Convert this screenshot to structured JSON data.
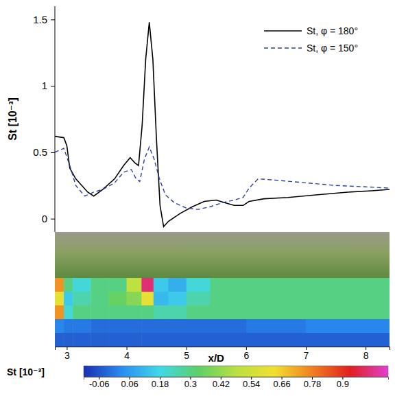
{
  "chart_data": {
    "type": "line",
    "x_label": "x/D",
    "y_label": "St [10⁻³]",
    "xlim": [
      2.8,
      8.4
    ],
    "ylim": [
      -0.1,
      1.6
    ],
    "xticks": [
      3,
      4,
      5,
      6,
      7,
      8
    ],
    "yticks": [
      0,
      0.5,
      1,
      1.5
    ],
    "legend": "upper right",
    "series": [
      {
        "name": "St, φ = 180°",
        "color": "#000000",
        "line_style": "solid",
        "x": [
          2.8,
          2.95,
          3.0,
          3.05,
          3.15,
          3.35,
          3.45,
          3.6,
          3.8,
          3.95,
          4.06,
          4.14,
          4.2,
          4.26,
          4.32,
          4.38,
          4.44,
          4.5,
          4.56,
          4.62,
          4.7,
          4.9,
          5.1,
          5.3,
          5.5,
          5.65,
          5.8,
          5.95,
          6.05,
          6.3,
          6.7,
          7.2,
          7.7,
          8.1,
          8.4
        ],
        "values": [
          0.62,
          0.61,
          0.55,
          0.38,
          0.3,
          0.2,
          0.17,
          0.22,
          0.3,
          0.4,
          0.46,
          0.42,
          0.4,
          0.7,
          1.2,
          1.48,
          1.2,
          0.6,
          0.1,
          -0.06,
          -0.02,
          0.04,
          0.09,
          0.13,
          0.14,
          0.12,
          0.1,
          0.1,
          0.13,
          0.15,
          0.16,
          0.18,
          0.2,
          0.21,
          0.22
        ]
      },
      {
        "name": "St, φ = 150°",
        "color": "#2e3fa0",
        "line_style": "dashed",
        "x": [
          2.8,
          2.95,
          3.05,
          3.15,
          3.3,
          3.45,
          3.6,
          3.8,
          3.95,
          4.08,
          4.16,
          4.22,
          4.3,
          4.38,
          4.46,
          4.55,
          4.65,
          4.8,
          5.0,
          5.2,
          5.4,
          5.6,
          5.8,
          5.95,
          6.05,
          6.2,
          6.5,
          7.0,
          7.5,
          8.0,
          8.4
        ],
        "values": [
          0.5,
          0.53,
          0.4,
          0.25,
          0.17,
          0.2,
          0.22,
          0.27,
          0.35,
          0.37,
          0.3,
          0.28,
          0.45,
          0.54,
          0.45,
          0.3,
          0.18,
          0.12,
          0.08,
          0.07,
          0.09,
          0.12,
          0.14,
          0.16,
          0.23,
          0.3,
          0.29,
          0.27,
          0.25,
          0.24,
          0.23
        ]
      }
    ],
    "contour": {
      "x": [
        2.8,
        2.95,
        3.1,
        3.4,
        3.7,
        4.0,
        4.25,
        4.45,
        4.7,
        5.0,
        5.4,
        6.0,
        7.0,
        8.4
      ],
      "cells": [
        [
          0.75,
          0.3,
          0.2,
          0.3,
          0.3,
          0.5,
          1.0,
          0.15,
          0.1,
          0.2,
          0.3,
          0.3,
          0.3
        ],
        [
          0.6,
          0.15,
          0.25,
          0.3,
          0.35,
          0.4,
          0.6,
          0.12,
          0.15,
          0.25,
          0.3,
          0.3,
          0.3
        ],
        [
          0.75,
          0.2,
          0.3,
          0.3,
          0.3,
          0.3,
          0.3,
          0.25,
          0.25,
          0.3,
          0.3,
          0.3,
          0.3
        ],
        [
          0.02,
          0.0,
          0.0,
          -0.02,
          -0.02,
          -0.02,
          -0.02,
          -0.02,
          -0.02,
          -0.02,
          -0.02,
          0.0,
          0.02
        ],
        [
          -0.04,
          -0.04,
          -0.04,
          -0.04,
          -0.04,
          -0.04,
          -0.04,
          -0.04,
          -0.04,
          -0.04,
          -0.04,
          -0.04,
          -0.04
        ]
      ]
    },
    "colorbar": {
      "label": "St [10⁻³]",
      "range": [
        -0.12,
        1.08
      ],
      "ticks": [
        -0.06,
        0.06,
        0.18,
        0.3,
        0.42,
        0.54,
        0.66,
        0.78,
        0.9
      ],
      "colors": [
        "#1a2fb0",
        "#2a8cf0",
        "#40d8e8",
        "#5ccf6a",
        "#b8e040",
        "#f0e030",
        "#f08020",
        "#e02020",
        "#e040d0"
      ]
    }
  }
}
